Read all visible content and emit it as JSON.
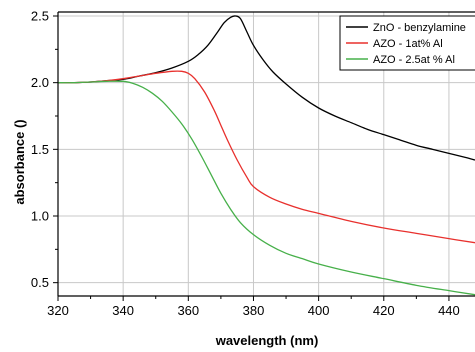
{
  "chart_data": {
    "type": "line",
    "title": "",
    "xlabel": "wavelength (nm)",
    "ylabel": "absorbance ()",
    "xlim": [
      320,
      448
    ],
    "ylim": [
      0.4,
      2.53
    ],
    "xticks": [
      320,
      340,
      360,
      380,
      400,
      420,
      440
    ],
    "xtick_labels": [
      "320",
      "340",
      "360",
      "380",
      "400",
      "420",
      "440"
    ],
    "yticks": [
      0.5,
      1.0,
      1.5,
      2.0,
      2.5
    ],
    "ytick_labels": [
      "0.5",
      "1.0",
      "1.5",
      "2.0",
      "2.5"
    ],
    "grid": true,
    "legend_position": "top-right",
    "series": [
      {
        "name": "ZnO - benzylamine",
        "color": "#000000",
        "x": [
          320,
          325,
          330,
          335,
          340,
          345,
          350,
          355,
          360,
          363,
          366,
          369,
          371,
          373,
          374.5,
          376,
          378,
          380,
          383,
          386,
          390,
          395,
          400,
          405,
          410,
          415,
          420,
          425,
          430,
          435,
          440,
          445,
          448
        ],
        "y": [
          2.0,
          2.0,
          2.005,
          2.015,
          2.025,
          2.05,
          2.075,
          2.11,
          2.16,
          2.21,
          2.28,
          2.38,
          2.45,
          2.49,
          2.5,
          2.48,
          2.38,
          2.28,
          2.17,
          2.08,
          1.99,
          1.89,
          1.81,
          1.75,
          1.7,
          1.65,
          1.61,
          1.57,
          1.53,
          1.5,
          1.47,
          1.44,
          1.42
        ]
      },
      {
        "name": "AZO - 1at% Al",
        "color": "#e8302d",
        "x": [
          320,
          325,
          330,
          335,
          340,
          345,
          350,
          355,
          358,
          360,
          362,
          365,
          368,
          370,
          372,
          375,
          378,
          380,
          385,
          390,
          395,
          400,
          410,
          420,
          430,
          440,
          448
        ],
        "y": [
          2.0,
          2.0,
          2.005,
          2.015,
          2.03,
          2.05,
          2.07,
          2.085,
          2.085,
          2.07,
          2.03,
          1.93,
          1.79,
          1.68,
          1.57,
          1.42,
          1.29,
          1.22,
          1.14,
          1.09,
          1.05,
          1.02,
          0.96,
          0.91,
          0.87,
          0.83,
          0.8
        ]
      },
      {
        "name": "AZO - 2.5at % Al",
        "color": "#47b04a",
        "x": [
          320,
          325,
          330,
          335,
          340,
          343,
          346,
          349,
          352,
          355,
          358,
          361,
          364,
          367,
          370,
          373,
          376,
          380,
          385,
          390,
          395,
          400,
          410,
          420,
          430,
          440,
          448
        ],
        "y": [
          2.0,
          2.0,
          2.005,
          2.01,
          2.01,
          1.995,
          1.965,
          1.92,
          1.86,
          1.78,
          1.69,
          1.58,
          1.45,
          1.31,
          1.17,
          1.05,
          0.95,
          0.86,
          0.78,
          0.72,
          0.68,
          0.64,
          0.58,
          0.53,
          0.48,
          0.44,
          0.41
        ]
      }
    ]
  }
}
